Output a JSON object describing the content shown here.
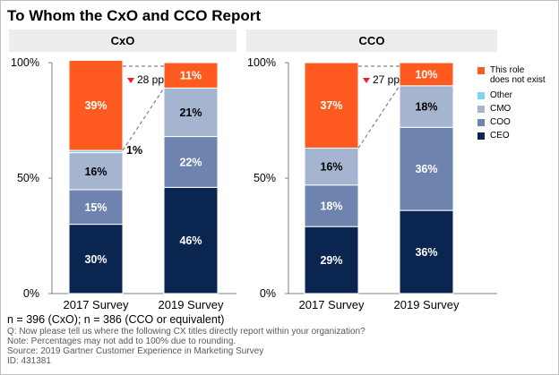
{
  "title": "To Whom the CxO and CCO Report",
  "chart_data": [
    {
      "type": "bar",
      "panel_title": "CxO",
      "categories": [
        "2017 Survey",
        "2019 Survey"
      ],
      "series": [
        {
          "name": "CEO",
          "values": [
            30,
            46
          ],
          "labels": [
            "30%",
            "46%"
          ]
        },
        {
          "name": "COO",
          "values": [
            15,
            22
          ],
          "labels": [
            "15%",
            "22%"
          ]
        },
        {
          "name": "CMO",
          "values": [
            16,
            21
          ],
          "labels": [
            "16%",
            "21%"
          ]
        },
        {
          "name": "Other",
          "values": [
            1,
            0
          ],
          "labels": [
            "1%",
            ""
          ]
        },
        {
          "name": "This role does not exist",
          "values": [
            39,
            11
          ],
          "labels": [
            "39%",
            "11%"
          ]
        }
      ],
      "annotation": "28 pp",
      "ylim": [
        0,
        100
      ],
      "yticks": [
        "0%",
        "50%",
        "100%"
      ]
    },
    {
      "type": "bar",
      "panel_title": "CCO",
      "categories": [
        "2017 Survey",
        "2019 Survey"
      ],
      "series": [
        {
          "name": "CEO",
          "values": [
            29,
            36
          ],
          "labels": [
            "29%",
            "36%"
          ]
        },
        {
          "name": "COO",
          "values": [
            18,
            36
          ],
          "labels": [
            "18%",
            "36%"
          ]
        },
        {
          "name": "CMO",
          "values": [
            16,
            18
          ],
          "labels": [
            "16%",
            "18%"
          ]
        },
        {
          "name": "Other",
          "values": [
            0,
            0
          ],
          "labels": [
            "",
            ""
          ]
        },
        {
          "name": "This role does not exist",
          "values": [
            37,
            10
          ],
          "labels": [
            "37%",
            "10%"
          ]
        }
      ],
      "annotation": "27 pp",
      "ylim": [
        0,
        100
      ],
      "yticks": [
        "0%",
        "50%",
        "100%"
      ]
    }
  ],
  "legend": [
    {
      "name": "This role does not exist",
      "line1": "This role",
      "line2": "does not exist",
      "color": "#FF5A1F"
    },
    {
      "name": "Other",
      "line1": "Other",
      "line2": "",
      "color": "#7FD3F0"
    },
    {
      "name": "CMO",
      "line1": "CMO",
      "line2": "",
      "color": "#A5B5CF"
    },
    {
      "name": "COO",
      "line1": "COO",
      "line2": "",
      "color": "#6E83AD"
    },
    {
      "name": "CEO",
      "line1": "CEO",
      "line2": "",
      "color": "#0B2551"
    }
  ],
  "colors": {
    "CEO": "#0B2551",
    "COO": "#6E83AD",
    "CMO": "#A5B5CF",
    "Other": "#7FD3F0",
    "This role does not exist": "#FF5A1F",
    "arrow": "#E8202A",
    "panel_header": "#EDEDED"
  },
  "footer": {
    "n": "n = 396 (CxO); n = 386 (CCO or equivalent)",
    "q": "Q: Now please tell us where the following CX titles directly report within your organization?",
    "note": "Note: Percentages may not add to 100% due to rounding.",
    "source": "Source: 2019 Gartner Customer Experience in Marketing Survey",
    "id": "ID: 431381"
  }
}
